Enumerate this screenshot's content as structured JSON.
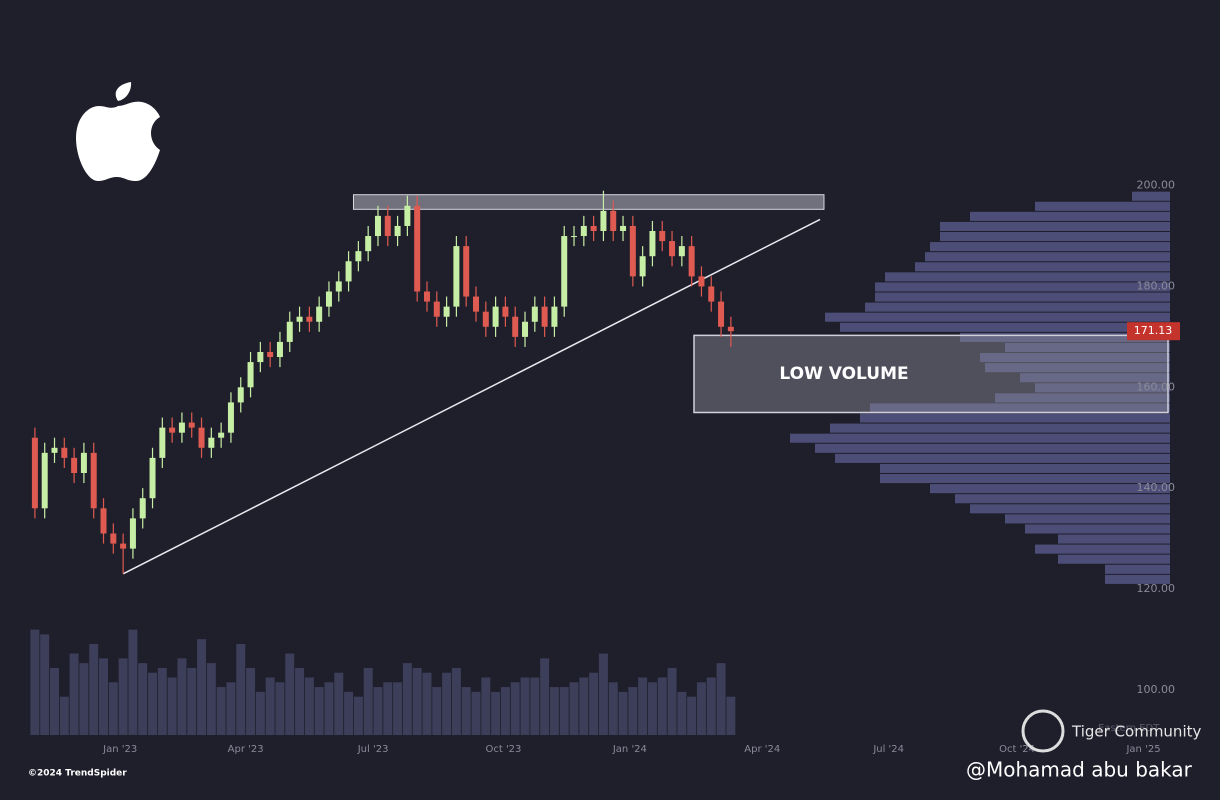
{
  "chart_data": {
    "type": "candlestick",
    "xlim": [
      -0.5,
      115.8
    ],
    "xticks": [
      {
        "value": 8.7,
        "label": "Jan '23"
      },
      {
        "value": 21.5,
        "label": "Apr '23"
      },
      {
        "value": 34.5,
        "label": "Jul '23"
      },
      {
        "value": 47.8,
        "label": "Oct '23"
      },
      {
        "value": 60.7,
        "label": "Jan '24"
      },
      {
        "value": 74.2,
        "label": "Apr '24"
      },
      {
        "value": 87.1,
        "label": "Jul '24"
      },
      {
        "value": 100.2,
        "label": "Oct '24"
      },
      {
        "value": 113.1,
        "label": "Jan '25"
      }
    ],
    "ylim": [
      95,
      215
    ],
    "yticks": [
      {
        "value": 100,
        "label": "100.00"
      },
      {
        "value": 120,
        "label": "120.00"
      },
      {
        "value": 140,
        "label": "140.00"
      },
      {
        "value": 160,
        "label": "160.00"
      },
      {
        "value": 180,
        "label": "180.00"
      },
      {
        "value": 200,
        "label": "200.00"
      }
    ],
    "up_color": "#c6efa5",
    "down_color": "#df5a50",
    "open": [
      150,
      136,
      147,
      148,
      146,
      143,
      147,
      136,
      131,
      129,
      128,
      134,
      138,
      146,
      152,
      151,
      153,
      152,
      148,
      150,
      151,
      157,
      160,
      165,
      167,
      166,
      169,
      173,
      174,
      173,
      176,
      179,
      181,
      185,
      187,
      190,
      194,
      190,
      192,
      196,
      179,
      177,
      174,
      176,
      188,
      178,
      175,
      172,
      176,
      174,
      170,
      173,
      176,
      172,
      176,
      190,
      190,
      192,
      191,
      195,
      191,
      192,
      182,
      186,
      191,
      189,
      186,
      188,
      182,
      180,
      177,
      172
    ],
    "high": [
      152,
      149,
      150,
      150,
      148,
      149,
      149,
      138,
      133,
      131,
      136,
      140,
      148,
      154,
      154,
      155,
      155,
      154,
      152,
      153,
      159,
      162,
      167,
      169,
      169,
      171,
      175,
      176,
      176,
      178,
      181,
      183,
      187,
      189,
      192,
      196,
      196,
      194,
      198,
      198,
      181,
      179,
      178,
      190,
      190,
      180,
      177,
      178,
      178,
      176,
      175,
      178,
      178,
      178,
      192,
      192,
      194,
      194,
      199,
      197,
      194,
      194,
      188,
      193,
      193,
      191,
      190,
      190,
      184,
      182,
      179,
      174
    ],
    "low": [
      134,
      134,
      145,
      144,
      141,
      141,
      134,
      129,
      127,
      123,
      126,
      132,
      136,
      144,
      149,
      149,
      150,
      146,
      146,
      148,
      149,
      155,
      158,
      163,
      164,
      164,
      167,
      171,
      171,
      171,
      174,
      177,
      179,
      183,
      185,
      188,
      188,
      188,
      190,
      177,
      175,
      172,
      172,
      174,
      176,
      173,
      170,
      170,
      172,
      168,
      168,
      171,
      170,
      170,
      174,
      188,
      188,
      189,
      189,
      189,
      189,
      180,
      180,
      184,
      187,
      184,
      184,
      180,
      178,
      175,
      170,
      168
    ],
    "close": [
      136,
      147,
      148,
      146,
      143,
      147,
      136,
      131,
      129,
      128,
      134,
      138,
      146,
      152,
      151,
      153,
      152,
      148,
      150,
      151,
      157,
      160,
      165,
      167,
      166,
      169,
      173,
      174,
      173,
      176,
      179,
      181,
      185,
      187,
      190,
      194,
      190,
      192,
      196,
      179,
      177,
      174,
      176,
      188,
      178,
      175,
      172,
      176,
      174,
      170,
      173,
      176,
      172,
      176,
      190,
      190,
      192,
      191,
      195,
      191,
      192,
      182,
      186,
      191,
      189,
      186,
      188,
      182,
      180,
      177,
      172,
      171.13
    ],
    "volume": {
      "axis": "y2",
      "color": "#3c3e5a",
      "values": [
        110,
        105,
        70,
        40,
        85,
        75,
        95,
        80,
        55,
        80,
        110,
        75,
        65,
        70,
        60,
        80,
        70,
        100,
        75,
        50,
        55,
        95,
        70,
        45,
        60,
        55,
        85,
        70,
        60,
        50,
        55,
        65,
        45,
        40,
        70,
        50,
        55,
        55,
        75,
        70,
        65,
        50,
        65,
        70,
        50,
        45,
        60,
        45,
        50,
        55,
        60,
        60,
        80,
        50,
        50,
        55,
        60,
        65,
        85,
        55,
        45,
        50,
        60,
        55,
        60,
        70,
        45,
        40,
        55,
        60,
        75,
        40
      ]
    },
    "y2lim": [
      0,
      120
    ],
    "volume_profile": {
      "color": "#4c4e78",
      "xlim": [
        0,
        380
      ],
      "bins": [
        121,
        123,
        125,
        127,
        129,
        131,
        133,
        135,
        137,
        139,
        141,
        143,
        145,
        147,
        149,
        151,
        153,
        155,
        157,
        159,
        161,
        163,
        165,
        167,
        169,
        171,
        173,
        175,
        177,
        179,
        181,
        183,
        185,
        187,
        189,
        191,
        193,
        195,
        197,
        199
      ],
      "counts": [
        65,
        65,
        112,
        135,
        112,
        145,
        165,
        200,
        215,
        240,
        290,
        290,
        335,
        355,
        380,
        340,
        310,
        300,
        175,
        135,
        150,
        185,
        190,
        165,
        210,
        330,
        345,
        305,
        295,
        295,
        285,
        255,
        245,
        240,
        230,
        230,
        200,
        135,
        38
      ]
    },
    "resistance_zone": {
      "ylim": [
        195.3,
        198.2
      ],
      "xlim": [
        32.5,
        80.5
      ]
    },
    "trendline": {
      "x": [
        9,
        80.1
      ],
      "y": [
        123,
        193.3
      ]
    },
    "low_volume_zone": {
      "label": "LOW VOLUME",
      "ylim": [
        155,
        170.3
      ]
    },
    "timezone": "Eastern EDT",
    "credit": "©2024 TrendSpider",
    "brand": "Tiger Community",
    "author": "@Mohamad abu bakar"
  }
}
